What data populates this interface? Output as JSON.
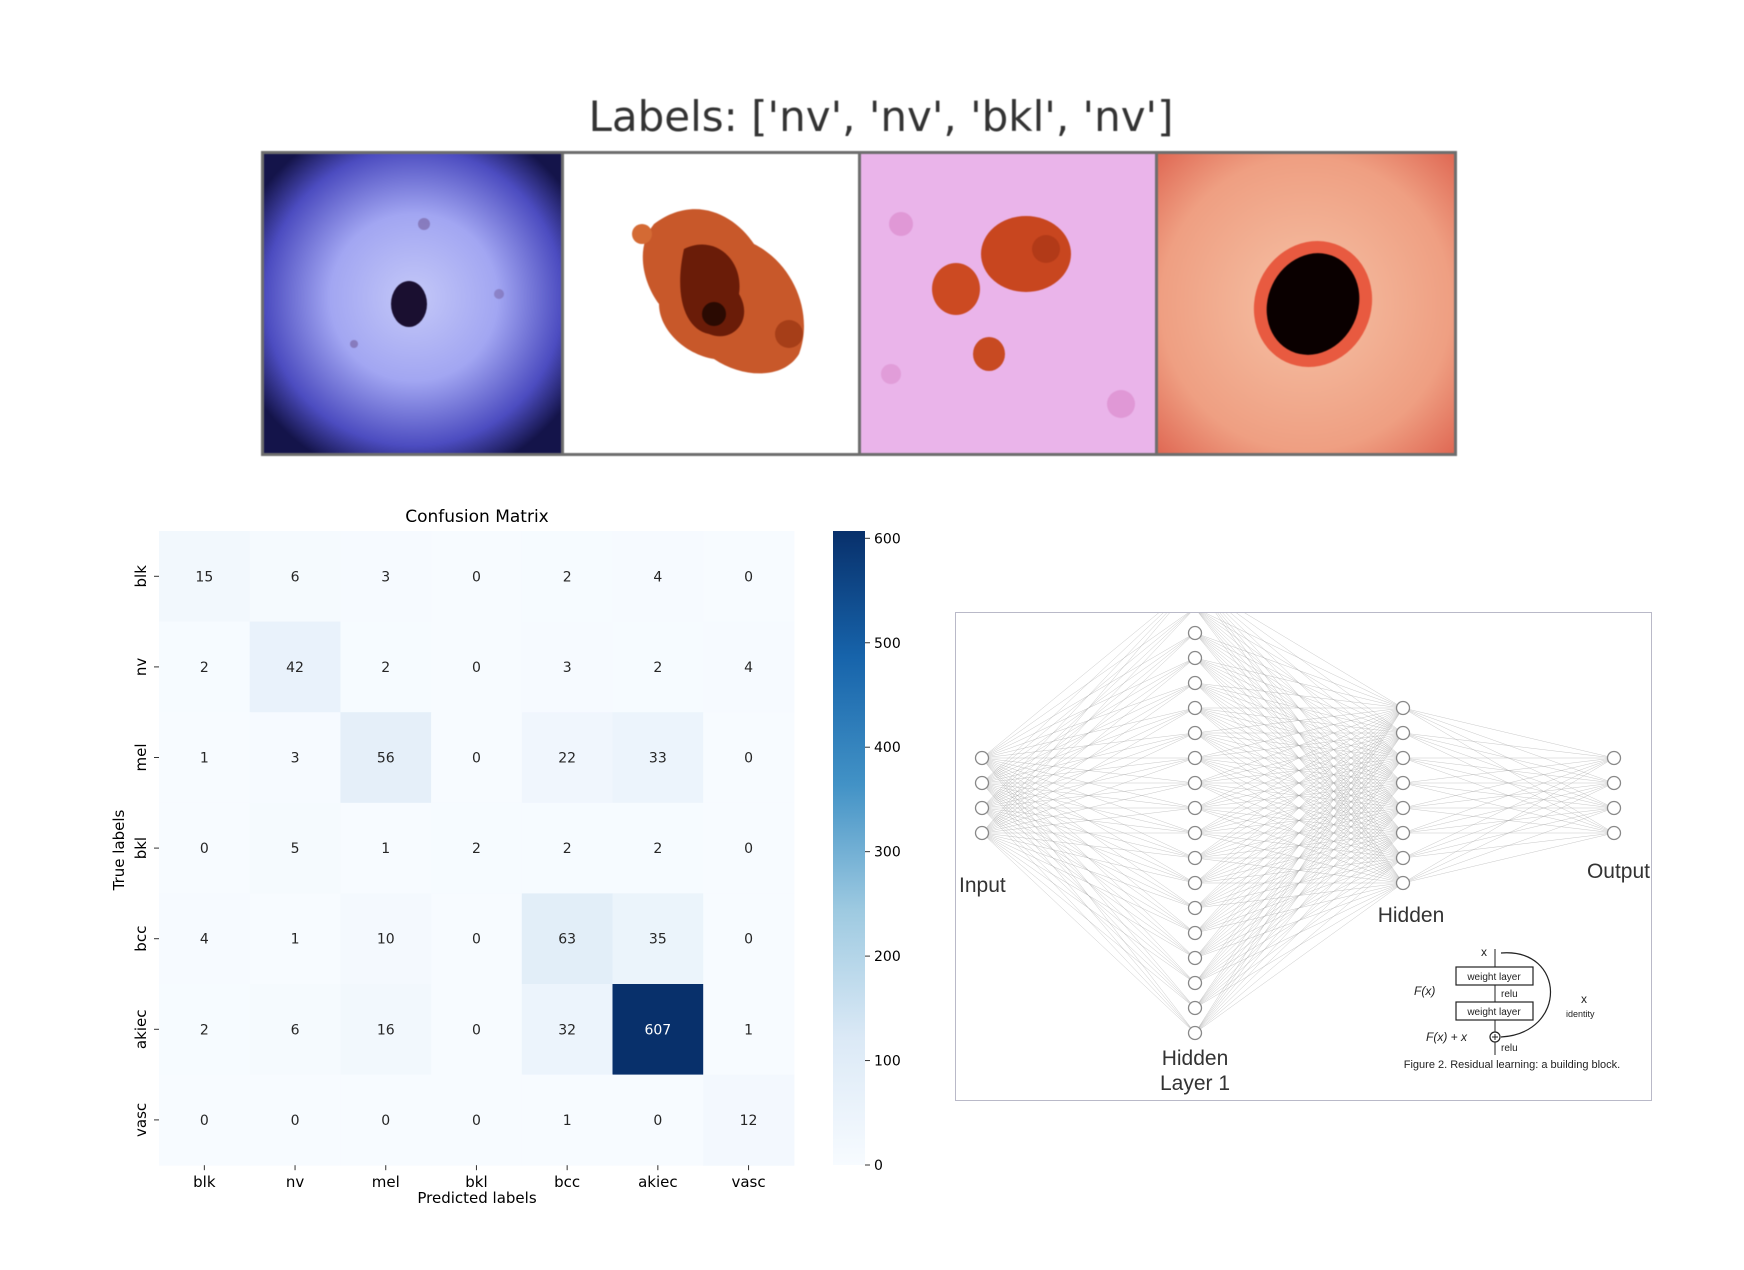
{
  "top_panel": {
    "title": "Labels: ['nv', 'nv', 'bkl', 'nv']",
    "tiles": [
      {
        "tone": "blue-violet",
        "bg": "#7f80ee",
        "lesion": "#1a0f30"
      },
      {
        "tone": "white",
        "bg": "#ffffff",
        "lesion": "#b9471c"
      },
      {
        "tone": "pink-magenta",
        "bg": "#e9a8e9",
        "lesion": "#c8461f"
      },
      {
        "tone": "salmon",
        "bg": "#f0a88c",
        "lesion": "#0a0000"
      }
    ]
  },
  "colors": {
    "cmap_low": "#f7fbff",
    "cmap_high": "#08306b"
  },
  "chart_data": [
    {
      "type": "heatmap",
      "title": "Confusion Matrix",
      "xlabel": "Predicted labels",
      "ylabel": "True labels",
      "x_categories": [
        "blk",
        "nv",
        "mel",
        "bkl",
        "bcc",
        "akiec",
        "vasc"
      ],
      "y_categories": [
        "blk",
        "nv",
        "mel",
        "bkl",
        "bcc",
        "akiec",
        "vasc"
      ],
      "values": [
        [
          15,
          6,
          3,
          0,
          2,
          4,
          0
        ],
        [
          2,
          42,
          2,
          0,
          3,
          2,
          4
        ],
        [
          1,
          3,
          56,
          0,
          22,
          33,
          0
        ],
        [
          0,
          5,
          1,
          2,
          2,
          2,
          0
        ],
        [
          4,
          1,
          10,
          0,
          63,
          35,
          0
        ],
        [
          2,
          6,
          16,
          0,
          32,
          607,
          1
        ],
        [
          0,
          0,
          0,
          0,
          1,
          0,
          12
        ]
      ],
      "colorbar": {
        "range": [
          0,
          607
        ],
        "ticks": [
          0,
          100,
          200,
          300,
          400,
          500,
          600
        ]
      }
    }
  ],
  "network_diagram": {
    "layers": [
      {
        "label": "Input",
        "nodes": 4
      },
      {
        "label": "Hidden\nLayer 1",
        "nodes": 17
      },
      {
        "label": "Hidden",
        "nodes": 8
      },
      {
        "label": "Output",
        "nodes": 4
      }
    ],
    "residual_block": {
      "top_label": "x",
      "layer1": "weight layer",
      "act1": "relu",
      "layer2": "weight layer",
      "act2": "relu",
      "fx": "F(x)",
      "fx_plus_x": "F(x) + x",
      "skip_label": "x",
      "skip_sub": "identity",
      "caption": "Figure 2. Residual learning: a building block."
    }
  }
}
